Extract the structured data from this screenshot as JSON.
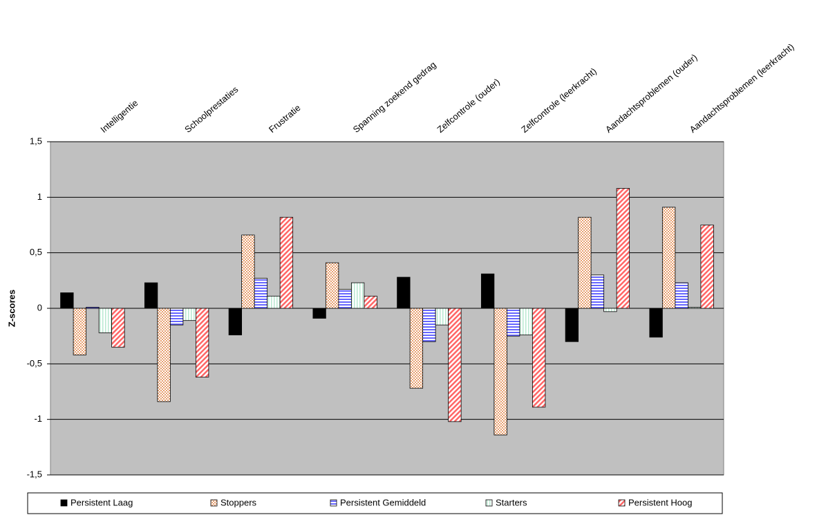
{
  "chart_data": {
    "type": "bar",
    "y_label": "Z-scores",
    "categories": [
      "Intelligentie",
      "Schoolprestaties",
      "Frustratie",
      "Spanning zoekend gedrag",
      "Zelfcontrole (ouder)",
      "Zelfcontrole (leerkracht)",
      "Aandachtsproblemen (ouder)",
      "Aandachtsproblemen (leerkracht)"
    ],
    "series": [
      {
        "name": "Persistent Laag",
        "color": "#000000",
        "values": [
          0.14,
          0.23,
          -0.24,
          -0.09,
          0.28,
          0.31,
          -0.3,
          -0.26
        ]
      },
      {
        "name": "Stoppers",
        "color": "#e8a070",
        "values": [
          -0.42,
          -0.84,
          0.66,
          0.41,
          -0.72,
          -1.14,
          0.82,
          0.91
        ]
      },
      {
        "name": "Persistent Gemiddeld",
        "color": "#6666ff",
        "values": [
          0.01,
          -0.15,
          0.27,
          0.17,
          -0.3,
          -0.25,
          0.3,
          0.23
        ]
      },
      {
        "name": "Starters",
        "color": "#b8e8d0",
        "values": [
          -0.22,
          -0.11,
          0.11,
          0.23,
          -0.15,
          -0.24,
          -0.03,
          0.01
        ]
      },
      {
        "name": "Persistent Hoog",
        "color": "#ff6666",
        "values": [
          -0.35,
          -0.62,
          0.82,
          0.11,
          -1.02,
          -0.89,
          1.08,
          0.75
        ]
      }
    ],
    "ylim": [
      -1.5,
      1.5
    ],
    "yticks": [
      {
        "value": -1.5,
        "label": "-1,5"
      },
      -1,
      {
        "value": -0.5,
        "label": "-0,5"
      },
      0,
      {
        "value": 0.5,
        "label": "0,5"
      },
      1,
      {
        "value": 1.5,
        "label": "1,5"
      }
    ],
    "grid": true,
    "legend": "bottom"
  }
}
